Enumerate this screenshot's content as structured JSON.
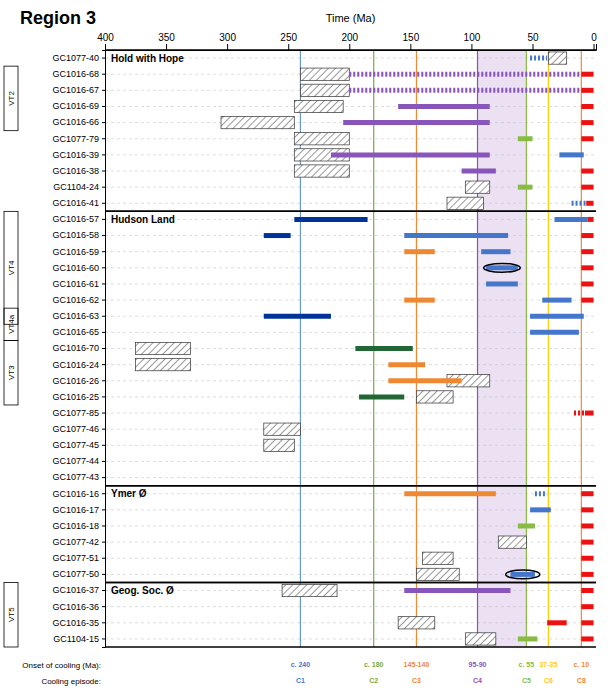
{
  "chart_data": {
    "type": "timeline",
    "title": "Region 3",
    "x_label": "Time (Ma)",
    "xlim": [
      400,
      -2
    ],
    "xticks": [
      400,
      350,
      300,
      250,
      200,
      150,
      100,
      50,
      0
    ],
    "grid": true,
    "categories": [
      "GC1077-40",
      "GC1016-68",
      "GC1016-67",
      "GC1016-69",
      "GC1016-66",
      "GC1077-79",
      "GC1016-39",
      "GC1016-38",
      "GC1104-24",
      "GC1016-41",
      "GC1016-57",
      "GC1016-58",
      "GC1016-59",
      "GC1016-60",
      "GC1016-61",
      "GC1016-62",
      "GC1016-63",
      "GC1016-65",
      "GC1016-70",
      "GC1016-24",
      "GC1016-26",
      "GC1016-25",
      "GC1077-85",
      "GC1077-46",
      "GC1077-45",
      "GC1077-44",
      "GC1077-43",
      "GC1016-16",
      "GC1016-17",
      "GC1016-18",
      "GC1077-42",
      "GC1077-51",
      "GC1077-50",
      "GC1016-37",
      "GC1016-36",
      "GC1016-35",
      "GC1104-15"
    ],
    "sections": [
      {
        "label": "Hold with Hope",
        "first": "GC1077-40",
        "last": "GC1016-41"
      },
      {
        "label": "Hudson Land",
        "first": "GC1016-57",
        "last": "GC1077-43"
      },
      {
        "label": "Ymer Ø",
        "first": "GC1016-16",
        "last": "GC1077-50"
      },
      {
        "label": "Geog. Soc. Ø",
        "first": "GC1016-37",
        "last": "GC1104-15"
      }
    ],
    "groups": [
      {
        "label": "VT2",
        "first": "GC1016-68",
        "last": "GC1016-66"
      },
      {
        "label": "VT4",
        "first": "GC1016-57",
        "last": "GC1016-63"
      },
      {
        "label": "VT4a",
        "first": "GC1016-63",
        "last": "GC1016-65"
      },
      {
        "label": "VT3",
        "first": "GC1016-70",
        "last": "GC1016-25"
      },
      {
        "label": "VT5",
        "first": "GC1016-37",
        "last": "GC1104-15"
      }
    ],
    "shaded_span": {
      "values": [
        55,
        95
      ],
      "color": "#c8aadd"
    },
    "vlines": [
      {
        "x": 240,
        "color": "#6699cc"
      },
      {
        "x": 180,
        "color": "#77aa44"
      },
      {
        "x": 145,
        "color": "#ee8833"
      },
      {
        "x": 95,
        "color": "#8855aa"
      },
      {
        "x": 55,
        "color": "#88bb44"
      },
      {
        "x": 37,
        "color": "#ffcc00"
      },
      {
        "x": 10,
        "color": "#ee8833"
      }
    ],
    "hatched_boxes": [
      {
        "category": "GC1016-68",
        "start": 240,
        "end": 200
      },
      {
        "category": "GC1016-67",
        "start": 240,
        "end": 200
      },
      {
        "category": "GC1016-69",
        "start": 245,
        "end": 205
      },
      {
        "category": "GC1016-66",
        "start": 305,
        "end": 245
      },
      {
        "category": "GC1077-79",
        "start": 245,
        "end": 200
      },
      {
        "category": "GC1016-39",
        "start": 245,
        "end": 200
      },
      {
        "category": "GC1016-38",
        "start": 245,
        "end": 200
      },
      {
        "category": "GC1077-40",
        "start": 37,
        "end": 22
      },
      {
        "category": "GC1104-24",
        "start": 105,
        "end": 85
      },
      {
        "category": "GC1016-41",
        "start": 120,
        "end": 90
      },
      {
        "category": "GC1016-70",
        "start": 375,
        "end": 330
      },
      {
        "category": "GC1016-24",
        "start": 375,
        "end": 330
      },
      {
        "category": "GC1016-26",
        "start": 120,
        "end": 85
      },
      {
        "category": "GC1016-25",
        "start": 145,
        "end": 115
      },
      {
        "category": "GC1077-46",
        "start": 270,
        "end": 240
      },
      {
        "category": "GC1077-45",
        "start": 270,
        "end": 245
      },
      {
        "category": "GC1077-42",
        "start": 78,
        "end": 55
      },
      {
        "category": "GC1077-51",
        "start": 140,
        "end": 115
      },
      {
        "category": "GC1077-50",
        "start": 145,
        "end": 110
      },
      {
        "category": "GC1016-37",
        "start": 255,
        "end": 210
      },
      {
        "category": "GC1016-35",
        "start": 160,
        "end": 130
      },
      {
        "category": "GC1104-15",
        "start": 105,
        "end": 80
      }
    ],
    "bars": [
      {
        "category": "GC1077-40",
        "start": 52,
        "end": 38,
        "color": "#4477cc",
        "line_style": "dotted"
      },
      {
        "category": "GC1016-68",
        "start": 200,
        "end": 10,
        "color": "#8855bb",
        "line_style": "dotted"
      },
      {
        "category": "GC1016-68",
        "start": 10,
        "end": 0,
        "color": "#ee1111",
        "line_style": "solid"
      },
      {
        "category": "GC1016-67",
        "start": 200,
        "end": 10,
        "color": "#8855bb",
        "line_style": "dotted"
      },
      {
        "category": "GC1016-67",
        "start": 10,
        "end": 0,
        "color": "#ee1111",
        "line_style": "solid"
      },
      {
        "category": "GC1016-69",
        "start": 160,
        "end": 85,
        "color": "#8855bb",
        "line_style": "solid"
      },
      {
        "category": "GC1016-69",
        "start": 10,
        "end": 0,
        "color": "#ee1111",
        "line_style": "solid"
      },
      {
        "category": "GC1016-66",
        "start": 205,
        "end": 85,
        "color": "#8855bb",
        "line_style": "solid"
      },
      {
        "category": "GC1016-66",
        "start": 10,
        "end": 0,
        "color": "#ee1111",
        "line_style": "solid"
      },
      {
        "category": "GC1077-79",
        "start": 62,
        "end": 50,
        "color": "#88bb44",
        "line_style": "solid"
      },
      {
        "category": "GC1077-79",
        "start": 10,
        "end": 0,
        "color": "#ee1111",
        "line_style": "solid"
      },
      {
        "category": "GC1016-39",
        "start": 215,
        "end": 85,
        "color": "#8855bb",
        "line_style": "solid"
      },
      {
        "category": "GC1016-39",
        "start": 28,
        "end": 8,
        "color": "#4477cc",
        "line_style": "solid"
      },
      {
        "category": "GC1016-38",
        "start": 108,
        "end": 80,
        "color": "#8855bb",
        "line_style": "solid"
      },
      {
        "category": "GC1016-38",
        "start": 10,
        "end": 0,
        "color": "#ee1111",
        "line_style": "solid"
      },
      {
        "category": "GC1104-24",
        "start": 62,
        "end": 50,
        "color": "#88bb44",
        "line_style": "solid"
      },
      {
        "category": "GC1104-24",
        "start": 10,
        "end": 0,
        "color": "#ee1111",
        "line_style": "solid"
      },
      {
        "category": "GC1016-41",
        "start": 18,
        "end": 6,
        "color": "#4477cc",
        "line_style": "dotted"
      },
      {
        "category": "GC1016-41",
        "start": 6,
        "end": 0,
        "color": "#ee1111",
        "line_style": "solid"
      },
      {
        "category": "GC1016-57",
        "start": 245,
        "end": 185,
        "color": "#003399",
        "line_style": "solid"
      },
      {
        "category": "GC1016-57",
        "start": 32,
        "end": 5,
        "color": "#4477cc",
        "line_style": "solid"
      },
      {
        "category": "GC1016-57",
        "start": 5,
        "end": 0,
        "color": "#ee1111",
        "line_style": "solid"
      },
      {
        "category": "GC1016-58",
        "start": 270,
        "end": 248,
        "color": "#003399",
        "line_style": "solid"
      },
      {
        "category": "GC1016-58",
        "start": 155,
        "end": 70,
        "color": "#4477cc",
        "line_style": "solid"
      },
      {
        "category": "GC1016-58",
        "start": 10,
        "end": 0,
        "color": "#ee1111",
        "line_style": "solid"
      },
      {
        "category": "GC1016-59",
        "start": 155,
        "end": 130,
        "color": "#ee8833",
        "line_style": "solid"
      },
      {
        "category": "GC1016-59",
        "start": 92,
        "end": 68,
        "color": "#4477cc",
        "line_style": "solid"
      },
      {
        "category": "GC1016-59",
        "start": 10,
        "end": 0,
        "color": "#ee1111",
        "line_style": "solid"
      },
      {
        "category": "GC1016-60",
        "start": 88,
        "end": 62,
        "color": "#4477cc",
        "line_style": "solid"
      },
      {
        "category": "GC1016-60",
        "start": 10,
        "end": 0,
        "color": "#ee1111",
        "line_style": "solid"
      },
      {
        "category": "GC1016-61",
        "start": 88,
        "end": 62,
        "color": "#4477cc",
        "line_style": "solid"
      },
      {
        "category": "GC1016-61",
        "start": 10,
        "end": 0,
        "color": "#ee1111",
        "line_style": "solid"
      },
      {
        "category": "GC1016-62",
        "start": 155,
        "end": 130,
        "color": "#ee8833",
        "line_style": "solid"
      },
      {
        "category": "GC1016-62",
        "start": 42,
        "end": 18,
        "color": "#4477cc",
        "line_style": "solid"
      },
      {
        "category": "GC1016-62",
        "start": 10,
        "end": 0,
        "color": "#ee1111",
        "line_style": "solid"
      },
      {
        "category": "GC1016-63",
        "start": 270,
        "end": 215,
        "color": "#003399",
        "line_style": "solid"
      },
      {
        "category": "GC1016-63",
        "start": 52,
        "end": 8,
        "color": "#4477cc",
        "line_style": "solid"
      },
      {
        "category": "GC1016-65",
        "start": 52,
        "end": 12,
        "color": "#4477cc",
        "line_style": "solid"
      },
      {
        "category": "GC1016-70",
        "start": 195,
        "end": 148,
        "color": "#226633",
        "line_style": "solid"
      },
      {
        "category": "GC1016-24",
        "start": 168,
        "end": 138,
        "color": "#ee8833",
        "line_style": "solid"
      },
      {
        "category": "GC1016-26",
        "start": 168,
        "end": 108,
        "color": "#ee8833",
        "line_style": "solid"
      },
      {
        "category": "GC1016-25",
        "start": 192,
        "end": 155,
        "color": "#226633",
        "line_style": "solid"
      },
      {
        "category": "GC1077-85",
        "start": 16,
        "end": 7,
        "color": "#ee1111",
        "line_style": "dotted"
      },
      {
        "category": "GC1077-85",
        "start": 7,
        "end": 0,
        "color": "#ee1111",
        "line_style": "solid"
      },
      {
        "category": "GC1016-16",
        "start": 155,
        "end": 80,
        "color": "#ee8833",
        "line_style": "solid"
      },
      {
        "category": "GC1016-16",
        "start": 10,
        "end": 0,
        "color": "#ee1111",
        "line_style": "solid"
      },
      {
        "category": "GC1016-16",
        "start": 48,
        "end": 38,
        "color": "#4477cc",
        "line_style": "dotted"
      },
      {
        "category": "GC1016-17",
        "start": 52,
        "end": 35,
        "color": "#4477cc",
        "line_style": "solid"
      },
      {
        "category": "GC1016-17",
        "start": 10,
        "end": 0,
        "color": "#ee1111",
        "line_style": "solid"
      },
      {
        "category": "GC1016-18",
        "start": 62,
        "end": 48,
        "color": "#88bb44",
        "line_style": "solid"
      },
      {
        "category": "GC1016-18",
        "start": 10,
        "end": 0,
        "color": "#ee1111",
        "line_style": "solid"
      },
      {
        "category": "GC1077-42",
        "start": 10,
        "end": 0,
        "color": "#ee1111",
        "line_style": "solid"
      },
      {
        "category": "GC1077-51",
        "start": 10,
        "end": 0,
        "color": "#ee1111",
        "line_style": "solid"
      },
      {
        "category": "GC1077-50",
        "start": 68,
        "end": 48,
        "color": "#4477cc",
        "line_style": "solid"
      },
      {
        "category": "GC1077-50",
        "start": 10,
        "end": 0,
        "color": "#ee1111",
        "line_style": "solid"
      },
      {
        "category": "GC1016-37",
        "start": 155,
        "end": 68,
        "color": "#8855bb",
        "line_style": "solid"
      },
      {
        "category": "GC1016-37",
        "start": 10,
        "end": 0,
        "color": "#ee1111",
        "line_style": "solid"
      },
      {
        "category": "GC1016-36",
        "start": 10,
        "end": 0,
        "color": "#ee1111",
        "line_style": "solid"
      },
      {
        "category": "GC1016-35",
        "start": 38,
        "end": 22,
        "color": "#ee1111",
        "line_style": "solid"
      },
      {
        "category": "GC1016-35",
        "start": 10,
        "end": 0,
        "color": "#ee1111",
        "line_style": "solid"
      },
      {
        "category": "GC1104-15",
        "start": 62,
        "end": 46,
        "color": "#88bb44",
        "line_style": "solid"
      },
      {
        "category": "GC1104-15",
        "start": 10,
        "end": 0,
        "color": "#ee1111",
        "line_style": "solid"
      }
    ],
    "ellipses": [
      {
        "category": "GC1016-60",
        "center": 75,
        "width": 30
      },
      {
        "category": "GC1077-50",
        "center": 58,
        "width": 28
      }
    ],
    "onset_label": "Onset of cooling (Ma):",
    "episode_label": "Cooling episode:",
    "cooling_labels": [
      {
        "x": 240,
        "onset": "c. 240",
        "episode": "C1",
        "color": "#4477cc"
      },
      {
        "x": 180,
        "onset": "c. 180",
        "episode": "C2",
        "color": "#77aa44"
      },
      {
        "x": 145,
        "onset": "145-140",
        "episode": "C3",
        "color": "#ee8833"
      },
      {
        "x": 95,
        "onset": "95-90",
        "episode": "C4",
        "color": "#8855bb"
      },
      {
        "x": 55,
        "onset": "c. 55",
        "episode": "C5",
        "color": "#88bb44"
      },
      {
        "x": 37,
        "onset": "37-35",
        "episode": "C6",
        "color": "#ffcc00"
      },
      {
        "x": 10,
        "onset": "c. 10",
        "episode": "C8",
        "color": "#ee8833"
      }
    ]
  }
}
